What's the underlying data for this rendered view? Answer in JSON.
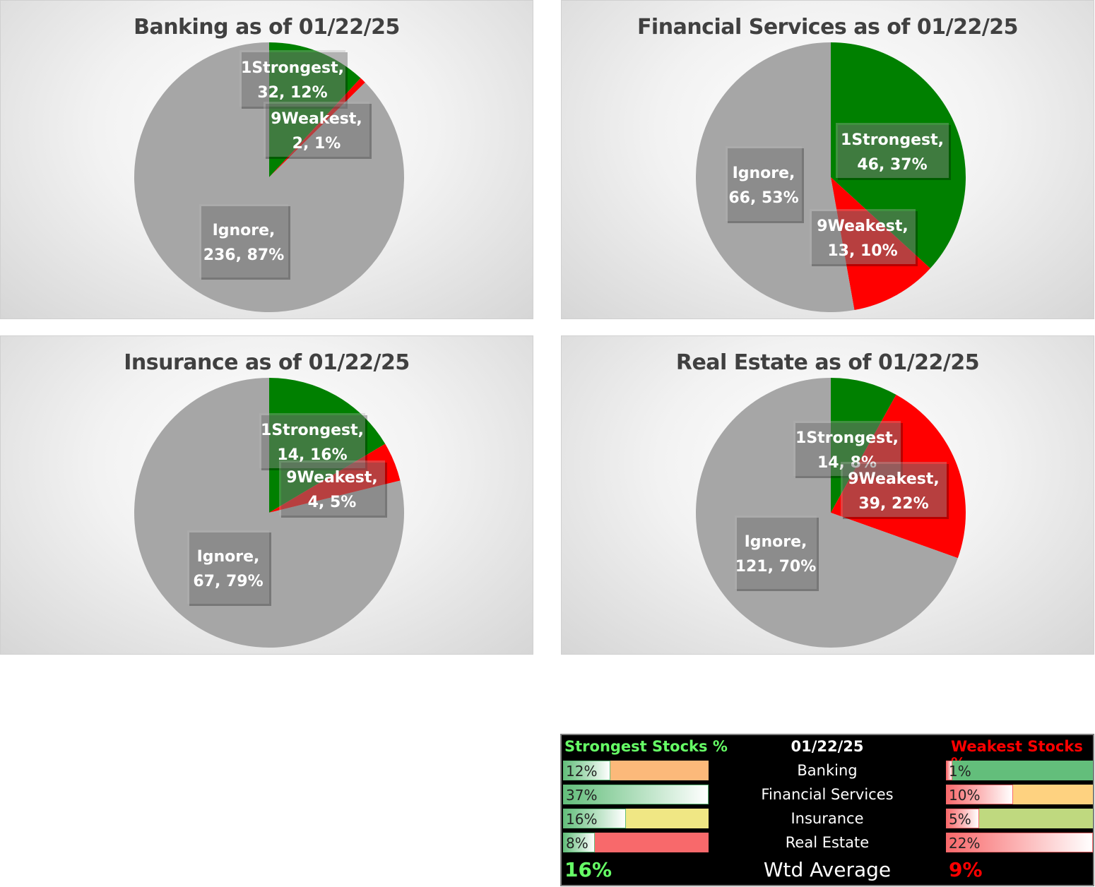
{
  "colors": {
    "strongest": "#008000",
    "weakest": "#ff0000",
    "ignore": "#a6a6a6"
  },
  "chart_data": [
    {
      "type": "pie",
      "title": "Banking as of 01/22/25",
      "slices": [
        {
          "label": "1Strongest",
          "value": 32,
          "percent": "12%",
          "color": "#008000"
        },
        {
          "label": "9Weakest",
          "value": 2,
          "percent": "1%",
          "color": "#ff0000"
        },
        {
          "label": "Ignore",
          "value": 236,
          "percent": "87%",
          "color": "#a6a6a6"
        }
      ]
    },
    {
      "type": "pie",
      "title": "Financial Services as of 01/22/25",
      "slices": [
        {
          "label": "1Strongest",
          "value": 46,
          "percent": "37%",
          "color": "#008000"
        },
        {
          "label": "9Weakest",
          "value": 13,
          "percent": "10%",
          "color": "#ff0000"
        },
        {
          "label": "Ignore",
          "value": 66,
          "percent": "53%",
          "color": "#a6a6a6"
        }
      ]
    },
    {
      "type": "pie",
      "title": "Insurance as of 01/22/25",
      "slices": [
        {
          "label": "1Strongest",
          "value": 14,
          "percent": "16%",
          "color": "#008000"
        },
        {
          "label": "9Weakest",
          "value": 4,
          "percent": "5%",
          "color": "#ff0000"
        },
        {
          "label": "Ignore",
          "value": 67,
          "percent": "79%",
          "color": "#a6a6a6"
        }
      ]
    },
    {
      "type": "pie",
      "title": "Real Estate as of 01/22/25",
      "slices": [
        {
          "label": "1Strongest",
          "value": 14,
          "percent": "8%",
          "color": "#008000"
        },
        {
          "label": "9Weakest",
          "value": 39,
          "percent": "22%",
          "color": "#ff0000"
        },
        {
          "label": "Ignore",
          "value": 121,
          "percent": "70%",
          "color": "#a6a6a6"
        }
      ]
    }
  ],
  "summary": {
    "strongest_header": "Strongest Stocks %",
    "date_header": "01/22/25",
    "weakest_header": "Weakest Stocks %",
    "rows": [
      {
        "sector": "Banking",
        "strongest": "12%",
        "strongest_value": 0.12,
        "strongest_bg": "#fcb97a",
        "weakest": "1%",
        "weakest_value": 0.01,
        "weakest_bg": "#63be7b"
      },
      {
        "sector": "Financial Services",
        "strongest": "37%",
        "strongest_value": 0.37,
        "strongest_bg": "#63be7b",
        "weakest": "10%",
        "weakest_value": 0.1,
        "weakest_bg": "#fed280"
      },
      {
        "sector": "Insurance",
        "strongest": "16%",
        "strongest_value": 0.16,
        "strongest_bg": "#f0e784",
        "weakest": "5%",
        "weakest_value": 0.05,
        "weakest_bg": "#bfd97f"
      },
      {
        "sector": "Real Estate",
        "strongest": "8%",
        "strongest_value": 0.08,
        "strongest_bg": "#f8696b",
        "weakest": "22%",
        "weakest_value": 0.22,
        "weakest_bg": "#f8696b"
      }
    ],
    "strongest_avg": "16%",
    "avg_label": "Wtd Average",
    "weakest_avg": "9%"
  }
}
